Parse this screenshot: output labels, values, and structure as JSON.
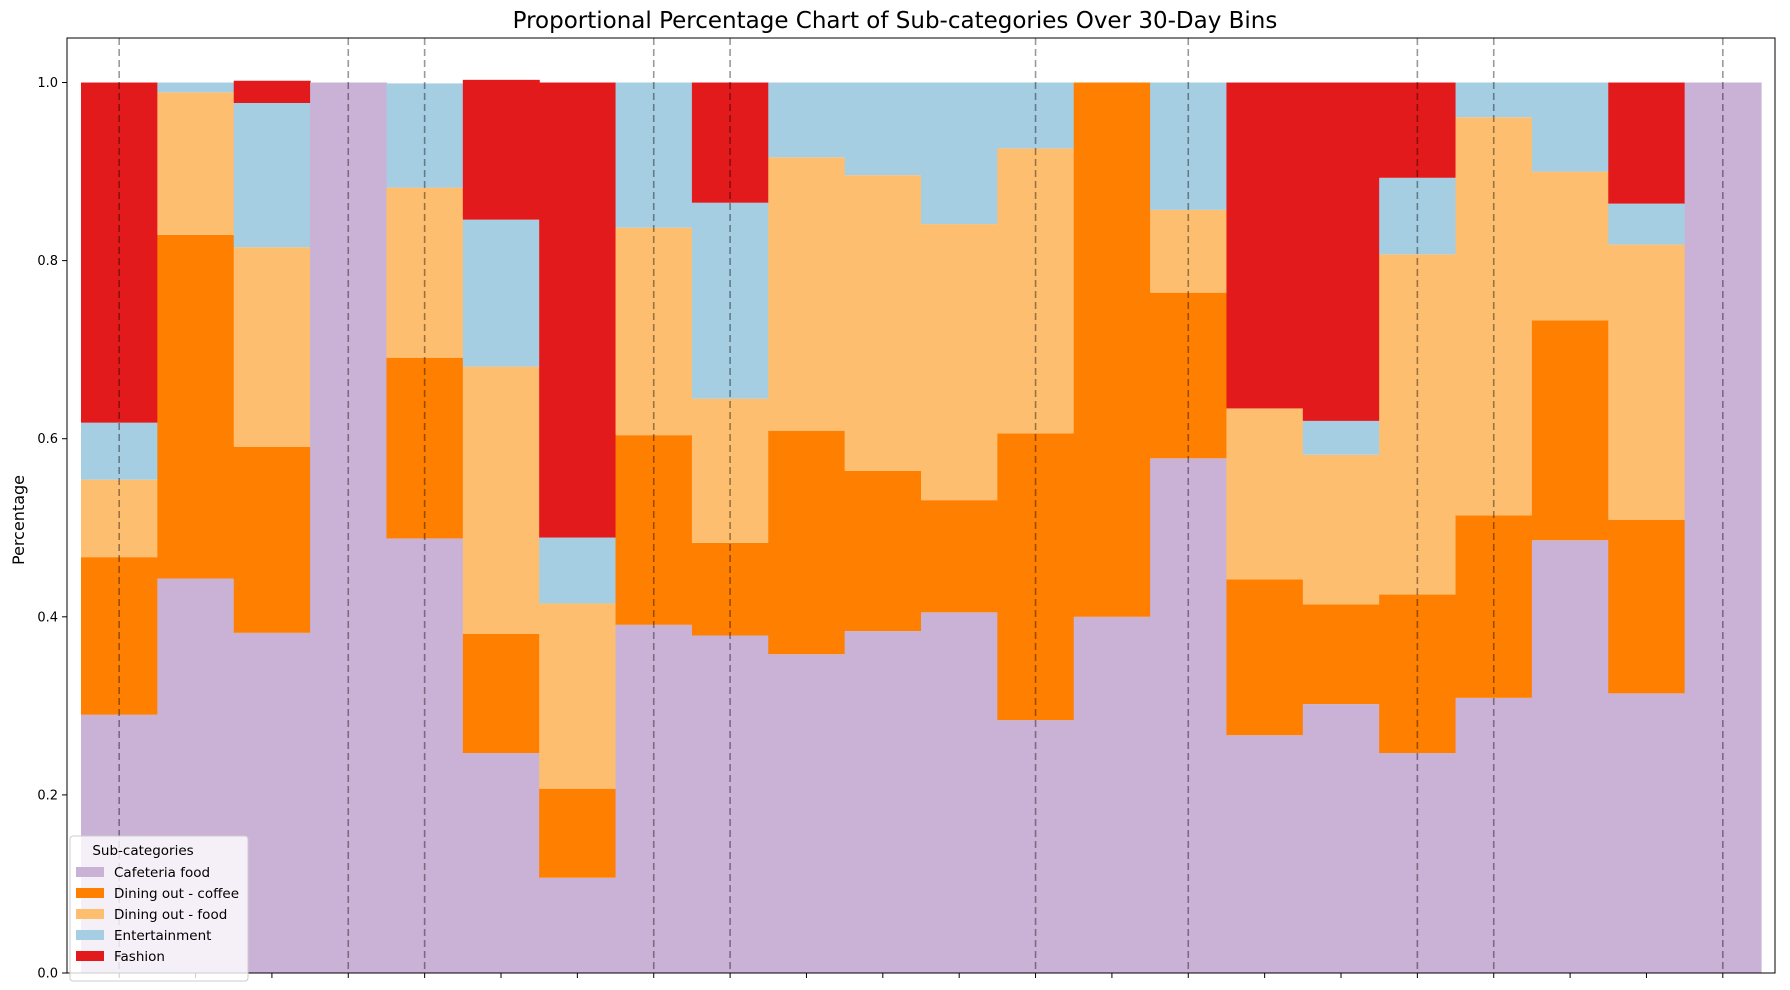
{
  "chart_data": {
    "type": "bar",
    "stacked": true,
    "proportional": true,
    "title": "Proportional Percentage Chart of Sub-categories Over 30-Day Bins",
    "xlabel": "",
    "ylabel": "Percentage",
    "ylim": [
      0,
      1.05
    ],
    "yticks": [
      "0.0",
      "0.2",
      "0.4",
      "0.6",
      "0.8",
      "1.0"
    ],
    "ytick_values": [
      0,
      0.2,
      0.4,
      0.6,
      0.8,
      1.0
    ],
    "bin_count": 22,
    "dashed_lines_after_bins": [
      0.5,
      3.5,
      4.5,
      7.5,
      8.5,
      12.5,
      14.5,
      17.5,
      18.5,
      21.5
    ],
    "x_tick_positions": [
      0.5,
      1.5,
      2.5,
      3.5,
      4.5,
      5.5,
      6.5,
      7.5,
      8.5,
      9.5,
      10.5,
      11.5,
      12.5,
      13.5,
      14.5,
      15.5,
      16.5,
      17.5,
      18.5,
      19.5,
      20.5,
      21.5
    ],
    "legend": {
      "title": "Sub-categories",
      "position": "lower-left"
    },
    "series": [
      {
        "name": "Cafeteria food",
        "color": "#cab2d6",
        "values": [
          0.29,
          0.443,
          0.382,
          1.0,
          0.488,
          0.247,
          0.107,
          0.391,
          0.379,
          0.358,
          0.384,
          0.405,
          0.284,
          0.4,
          0.578,
          0.267,
          0.302,
          0.247,
          0.309,
          0.486,
          0.314,
          1.0
        ]
      },
      {
        "name": "Dining out - coffee",
        "color": "#ff7f00",
        "values": [
          0.177,
          0.386,
          0.209,
          0.0,
          0.203,
          0.134,
          0.1,
          0.213,
          0.104,
          0.251,
          0.18,
          0.126,
          0.322,
          0.6,
          0.186,
          0.175,
          0.112,
          0.178,
          0.205,
          0.247,
          0.195,
          0.0
        ]
      },
      {
        "name": "Dining out - food",
        "color": "#fdbf6f",
        "values": [
          0.087,
          0.16,
          0.224,
          0.0,
          0.191,
          0.3,
          0.208,
          0.233,
          0.162,
          0.307,
          0.332,
          0.31,
          0.32,
          0.0,
          0.093,
          0.192,
          0.168,
          0.382,
          0.447,
          0.167,
          0.309,
          0.0
        ]
      },
      {
        "name": "Entertainment",
        "color": "#a6cee3",
        "values": [
          0.064,
          0.011,
          0.162,
          0.0,
          0.117,
          0.165,
          0.074,
          0.163,
          0.22,
          0.084,
          0.104,
          0.159,
          0.074,
          0.0,
          0.143,
          0.0,
          0.038,
          0.086,
          0.039,
          0.1,
          0.046,
          0.0
        ]
      },
      {
        "name": "Fashion",
        "color": "#e31a1c",
        "values": [
          0.382,
          0.0,
          0.025,
          0.0,
          0.0,
          0.157,
          0.511,
          0.0,
          0.135,
          0.0,
          0.0,
          0.0,
          0.0,
          0.0,
          0.0,
          0.366,
          0.38,
          0.107,
          0.0,
          0.0,
          0.136,
          0.0
        ]
      }
    ]
  }
}
